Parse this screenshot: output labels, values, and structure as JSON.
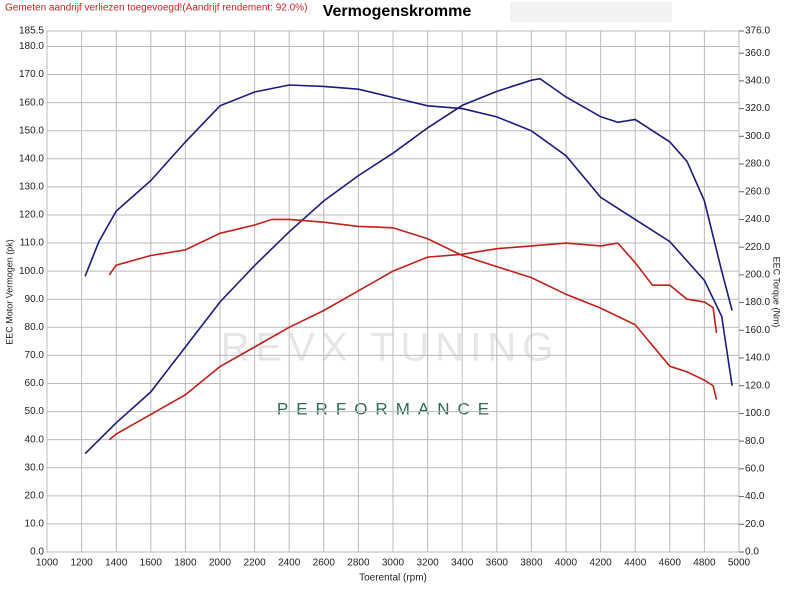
{
  "chart_data": {
    "type": "line",
    "title": "Vermogenskromme",
    "subtitle": "Gemeten aandrijf verliezen toegevoegd!(Aandrijf rendement: 92.0%)",
    "xlabel": "Toerental (rpm)",
    "ylabel": "EEC Motor Vermogen (pk)",
    "y2label": "EEC Torque (Nm)",
    "watermark": [
      "REVX TUNING",
      "PERFORMANCE"
    ],
    "grid": true,
    "xlim": [
      1000,
      5000
    ],
    "xticks": [
      1000,
      1200,
      1400,
      1600,
      1800,
      2000,
      2200,
      2400,
      2600,
      2800,
      3000,
      3200,
      3400,
      3600,
      3800,
      4000,
      4200,
      4400,
      4600,
      4800,
      5000
    ],
    "ylim": [
      0,
      185.5
    ],
    "yticks": [
      {
        "value": 0,
        "label": "0.0"
      },
      {
        "value": 10,
        "label": "10.0"
      },
      {
        "value": 20,
        "label": "20.0"
      },
      {
        "value": 30,
        "label": "30.0"
      },
      {
        "value": 40,
        "label": "40.0"
      },
      {
        "value": 50,
        "label": "50.0"
      },
      {
        "value": 60,
        "label": "60.0"
      },
      {
        "value": 70,
        "label": "70.0"
      },
      {
        "value": 80,
        "label": "80.0"
      },
      {
        "value": 90,
        "label": "90.0"
      },
      {
        "value": 100,
        "label": "100.0"
      },
      {
        "value": 110,
        "label": "110.0"
      },
      {
        "value": 120,
        "label": "120.0"
      },
      {
        "value": 130,
        "label": "130.0"
      },
      {
        "value": 140,
        "label": "140.0"
      },
      {
        "value": 150,
        "label": "150.0"
      },
      {
        "value": 160,
        "label": "160.0"
      },
      {
        "value": 170,
        "label": "170.0"
      },
      {
        "value": 180,
        "label": "180.0"
      },
      185.5
    ],
    "y2lim": [
      0,
      376
    ],
    "y2ticks": [
      {
        "value": 0,
        "label": "0.0"
      },
      {
        "value": 20,
        "label": "20.0"
      },
      {
        "value": 40,
        "label": "40.0"
      },
      {
        "value": 60,
        "label": "60.0"
      },
      {
        "value": 80,
        "label": "80.0"
      },
      {
        "value": 100,
        "label": "100.0"
      },
      {
        "value": 120,
        "label": "120.0"
      },
      {
        "value": 140,
        "label": "140.0"
      },
      {
        "value": 160,
        "label": "160.0"
      },
      {
        "value": 180,
        "label": "180.0"
      },
      {
        "value": 200,
        "label": "200.0"
      },
      {
        "value": 220,
        "label": "220.0"
      },
      {
        "value": 240,
        "label": "240.0"
      },
      {
        "value": 260,
        "label": "260.0"
      },
      {
        "value": 280,
        "label": "280.0"
      },
      {
        "value": 300,
        "label": "300.0"
      },
      {
        "value": 320,
        "label": "320.0"
      },
      {
        "value": 340,
        "label": "340.0"
      },
      {
        "value": 360,
        "label": "360.0"
      },
      {
        "value": 376,
        "label": "376.0"
      }
    ],
    "series": [
      {
        "color": "#1c1c7c",
        "axis": "y2",
        "x": [
          1220,
          1300,
          1400,
          1600,
          1800,
          2000,
          2200,
          2400,
          2600,
          2800,
          3000,
          3200,
          3400,
          3600,
          3800,
          4000,
          4200,
          4400,
          4600,
          4800,
          4900,
          4960
        ],
        "values": [
          199,
          224,
          246,
          268,
          296,
          322,
          332,
          337,
          336,
          334,
          328,
          322,
          320,
          314,
          304,
          286,
          256,
          240,
          224,
          196,
          170,
          120
        ]
      },
      {
        "color": "#1c1c7c",
        "x": [
          1220,
          1400,
          1600,
          1800,
          2000,
          2200,
          2400,
          2600,
          2800,
          3000,
          3200,
          3400,
          3600,
          3800,
          3850,
          4000,
          4200,
          4300,
          4400,
          4600,
          4700,
          4800,
          4900,
          4960
        ],
        "values": [
          35,
          46,
          57,
          73,
          89,
          102,
          114,
          125,
          134,
          142,
          151,
          159,
          164,
          168,
          168.5,
          162,
          155,
          153,
          154,
          146,
          139,
          125,
          100,
          86
        ]
      },
      {
        "color": "#c0201a",
        "axis": "y2",
        "x": [
          1360,
          1400,
          1600,
          1800,
          2000,
          2200,
          2300,
          2400,
          2600,
          2800,
          3000,
          3200,
          3400,
          3600,
          3800,
          4000,
          4200,
          4400,
          4600,
          4700,
          4800,
          4850,
          4870
        ],
        "values": [
          200,
          207,
          214,
          218,
          230,
          236,
          240,
          240,
          238,
          235,
          234,
          226,
          214,
          206,
          198,
          186,
          176,
          164,
          134,
          130,
          124,
          120,
          110
        ]
      },
      {
        "color": "#c0201a",
        "x": [
          1360,
          1400,
          1600,
          1800,
          2000,
          2200,
          2400,
          2600,
          2800,
          3000,
          3200,
          3400,
          3600,
          3800,
          4000,
          4200,
          4300,
          4400,
          4500,
          4600,
          4700,
          4800,
          4850,
          4870
        ],
        "values": [
          40,
          42,
          49,
          56,
          66,
          73,
          80,
          86,
          93,
          100,
          105,
          106,
          108,
          109,
          110,
          109,
          110,
          103,
          95,
          95,
          90,
          89,
          87,
          78
        ]
      }
    ]
  }
}
